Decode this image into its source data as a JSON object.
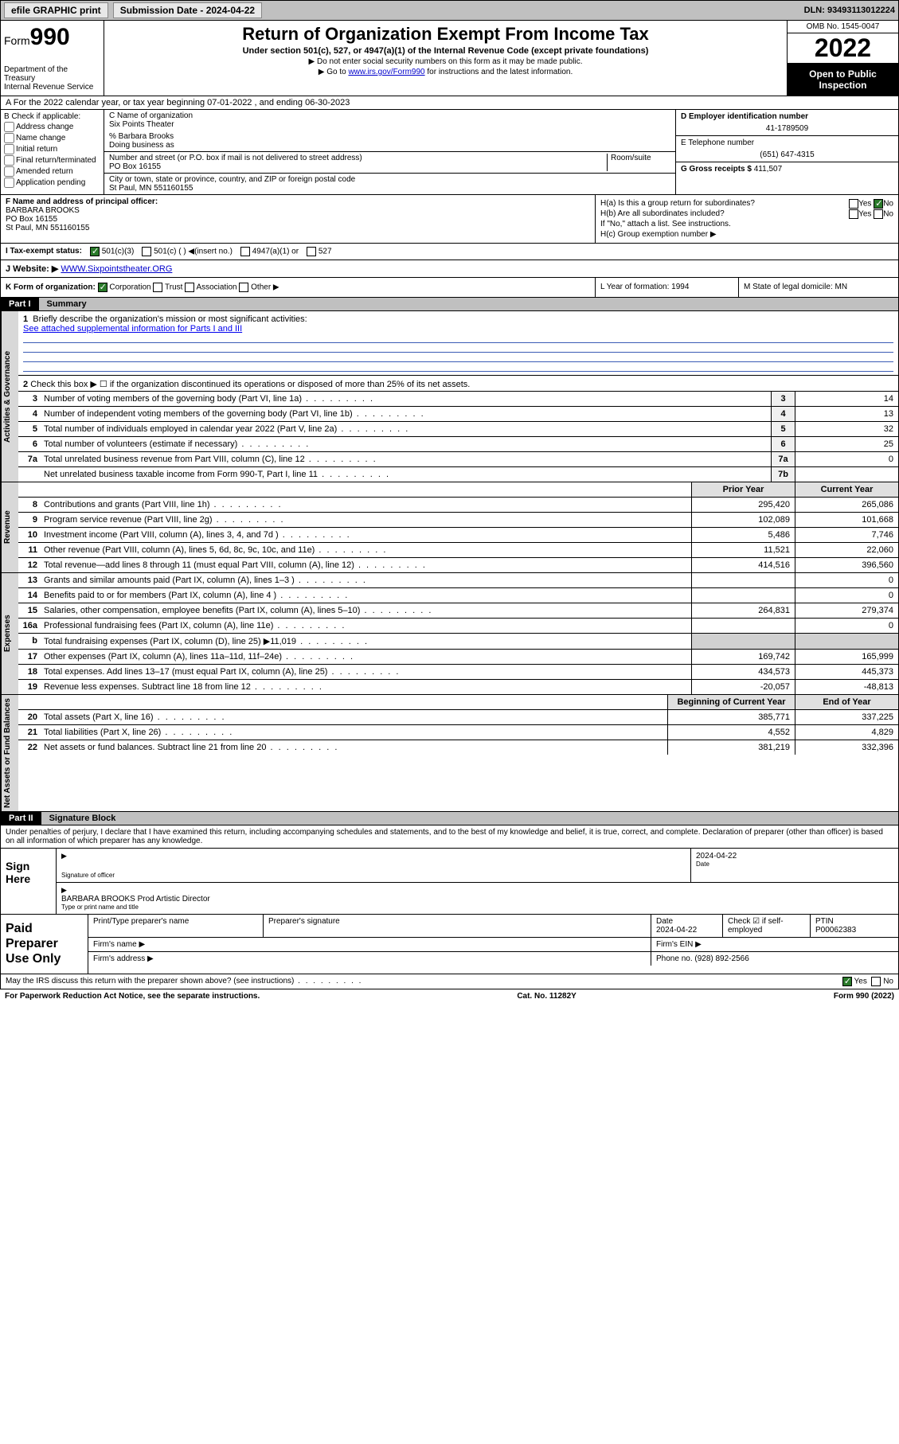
{
  "topbar": {
    "efile": "efile GRAPHIC print",
    "submission_label": "Submission Date - 2024-04-22",
    "dln": "DLN: 93493113012224"
  },
  "header": {
    "form_prefix": "Form",
    "form_number": "990",
    "dept": "Department of the Treasury",
    "irs": "Internal Revenue Service",
    "title": "Return of Organization Exempt From Income Tax",
    "sub1": "Under section 501(c), 527, or 4947(a)(1) of the Internal Revenue Code (except private foundations)",
    "sub2": "▶ Do not enter social security numbers on this form as it may be made public.",
    "sub3_pre": "▶ Go to ",
    "sub3_link": "www.irs.gov/Form990",
    "sub3_post": " for instructions and the latest information.",
    "omb": "OMB No. 1545-0047",
    "year": "2022",
    "open_pub": "Open to Public Inspection"
  },
  "row_a": "A For the 2022 calendar year, or tax year beginning 07-01-2022  , and ending 06-30-2023",
  "col_b": {
    "label": "B Check if applicable:",
    "opts": [
      "Address change",
      "Name change",
      "Initial return",
      "Final return/terminated",
      "Amended return",
      "Application pending"
    ]
  },
  "col_c": {
    "c_label": "C Name of organization",
    "org": "Six Points Theater",
    "care_of": "% Barbara Brooks",
    "dba_label": "Doing business as",
    "addr_label": "Number and street (or P.O. box if mail is not delivered to street address)",
    "room_label": "Room/suite",
    "addr": "PO Box 16155",
    "city_label": "City or town, state or province, country, and ZIP or foreign postal code",
    "city": "St Paul, MN  551160155"
  },
  "col_de": {
    "d_label": "D Employer identification number",
    "ein": "41-1789509",
    "e_label": "E Telephone number",
    "phone": "(651) 647-4315",
    "g_label": "G Gross receipts $",
    "gross": "411,507"
  },
  "col_f": {
    "label": "F Name and address of principal officer:",
    "name": "BARBARA BROOKS",
    "addr1": "PO Box 16155",
    "addr2": "St Paul, MN  551160155"
  },
  "col_h": {
    "ha": "H(a)  Is this a group return for subordinates?",
    "hb": "H(b)  Are all subordinates included?",
    "hb_note": "If \"No,\" attach a list. See instructions.",
    "hc": "H(c)  Group exemption number ▶",
    "yes": "Yes",
    "no": "No"
  },
  "row_i": {
    "label": "I  Tax-exempt status:",
    "o1": "501(c)(3)",
    "o2": "501(c) (  ) ◀(insert no.)",
    "o3": "4947(a)(1) or",
    "o4": "527"
  },
  "row_j": {
    "label": "J  Website: ▶ ",
    "url": "WWW.Sixpointstheater.ORG"
  },
  "row_k": "K Form of organization:",
  "row_k_opts": [
    "Corporation",
    "Trust",
    "Association",
    "Other ▶"
  ],
  "row_l": "L Year of formation: 1994",
  "row_m": "M State of legal domicile: MN",
  "parts": {
    "p1_tag": "Part I",
    "p1_title": "Summary",
    "p2_tag": "Part II",
    "p2_title": "Signature Block"
  },
  "sections": {
    "s1": "Activities & Governance",
    "s2": "Revenue",
    "s3": "Expenses",
    "s4": "Net Assets or Fund Balances"
  },
  "line1": {
    "num": "1",
    "text": "Briefly describe the organization's mission or most significant activities:",
    "link": "See attached supplemental information for Parts I and III"
  },
  "line2": {
    "num": "2",
    "text": "Check this box ▶ ☐  if the organization discontinued its operations or disposed of more than 25% of its net assets."
  },
  "rows_gov": [
    {
      "n": "3",
      "d": "Number of voting members of the governing body (Part VI, line 1a)",
      "b": "3",
      "v": "14"
    },
    {
      "n": "4",
      "d": "Number of independent voting members of the governing body (Part VI, line 1b)",
      "b": "4",
      "v": "13"
    },
    {
      "n": "5",
      "d": "Total number of individuals employed in calendar year 2022 (Part V, line 2a)",
      "b": "5",
      "v": "32"
    },
    {
      "n": "6",
      "d": "Total number of volunteers (estimate if necessary)",
      "b": "6",
      "v": "25"
    },
    {
      "n": "7a",
      "d": "Total unrelated business revenue from Part VIII, column (C), line 12",
      "b": "7a",
      "v": "0"
    },
    {
      "n": "",
      "d": "Net unrelated business taxable income from Form 990-T, Part I, line 11",
      "b": "7b",
      "v": ""
    }
  ],
  "hdr_py": "Prior Year",
  "hdr_cy": "Current Year",
  "rows_rev": [
    {
      "n": "8",
      "d": "Contributions and grants (Part VIII, line 1h)",
      "py": "295,420",
      "cy": "265,086"
    },
    {
      "n": "9",
      "d": "Program service revenue (Part VIII, line 2g)",
      "py": "102,089",
      "cy": "101,668"
    },
    {
      "n": "10",
      "d": "Investment income (Part VIII, column (A), lines 3, 4, and 7d )",
      "py": "5,486",
      "cy": "7,746"
    },
    {
      "n": "11",
      "d": "Other revenue (Part VIII, column (A), lines 5, 6d, 8c, 9c, 10c, and 11e)",
      "py": "11,521",
      "cy": "22,060"
    },
    {
      "n": "12",
      "d": "Total revenue—add lines 8 through 11 (must equal Part VIII, column (A), line 12)",
      "py": "414,516",
      "cy": "396,560"
    }
  ],
  "rows_exp": [
    {
      "n": "13",
      "d": "Grants and similar amounts paid (Part IX, column (A), lines 1–3 )",
      "py": "",
      "cy": "0"
    },
    {
      "n": "14",
      "d": "Benefits paid to or for members (Part IX, column (A), line 4 )",
      "py": "",
      "cy": "0"
    },
    {
      "n": "15",
      "d": "Salaries, other compensation, employee benefits (Part IX, column (A), lines 5–10)",
      "py": "264,831",
      "cy": "279,374"
    },
    {
      "n": "16a",
      "d": "Professional fundraising fees (Part IX, column (A), line 11e)",
      "py": "",
      "cy": "0"
    },
    {
      "n": "b",
      "d": "Total fundraising expenses (Part IX, column (D), line 25) ▶11,019",
      "py": "grey",
      "cy": "grey"
    },
    {
      "n": "17",
      "d": "Other expenses (Part IX, column (A), lines 11a–11d, 11f–24e)",
      "py": "169,742",
      "cy": "165,999"
    },
    {
      "n": "18",
      "d": "Total expenses. Add lines 13–17 (must equal Part IX, column (A), line 25)",
      "py": "434,573",
      "cy": "445,373"
    },
    {
      "n": "19",
      "d": "Revenue less expenses. Subtract line 18 from line 12",
      "py": "-20,057",
      "cy": "-48,813"
    }
  ],
  "hdr_boy": "Beginning of Current Year",
  "hdr_eoy": "End of Year",
  "rows_net": [
    {
      "n": "20",
      "d": "Total assets (Part X, line 16)",
      "py": "385,771",
      "cy": "337,225"
    },
    {
      "n": "21",
      "d": "Total liabilities (Part X, line 26)",
      "py": "4,552",
      "cy": "4,829"
    },
    {
      "n": "22",
      "d": "Net assets or fund balances. Subtract line 21 from line 20",
      "py": "381,219",
      "cy": "332,396"
    }
  ],
  "sig_intro": "Under penalties of perjury, I declare that I have examined this return, including accompanying schedules and statements, and to the best of my knowledge and belief, it is true, correct, and complete. Declaration of preparer (other than officer) is based on all information of which preparer has any knowledge.",
  "sign": {
    "here": "Sign Here",
    "sig_label": "Signature of officer",
    "date": "2024-04-22",
    "date_label": "Date",
    "name": "BARBARA BROOKS Prod Artistic Director",
    "name_label": "Type or print name and title"
  },
  "paid": {
    "title": "Paid Preparer Use Only",
    "h1": "Print/Type preparer's name",
    "h2": "Preparer's signature",
    "h3": "Date",
    "h3v": "2024-04-22",
    "h4": "Check ☑ if self-employed",
    "h5": "PTIN",
    "h5v": "P00062383",
    "firm_name": "Firm's name   ▶",
    "firm_ein": "Firm's EIN ▶",
    "firm_addr": "Firm's address ▶",
    "phone": "Phone no. (928) 892-2566"
  },
  "foot": {
    "q": "May the IRS discuss this return with the preparer shown above? (see instructions)",
    "yes": "Yes",
    "no": "No",
    "pra": "For Paperwork Reduction Act Notice, see the separate instructions.",
    "cat": "Cat. No. 11282Y",
    "form": "Form 990 (2022)"
  }
}
